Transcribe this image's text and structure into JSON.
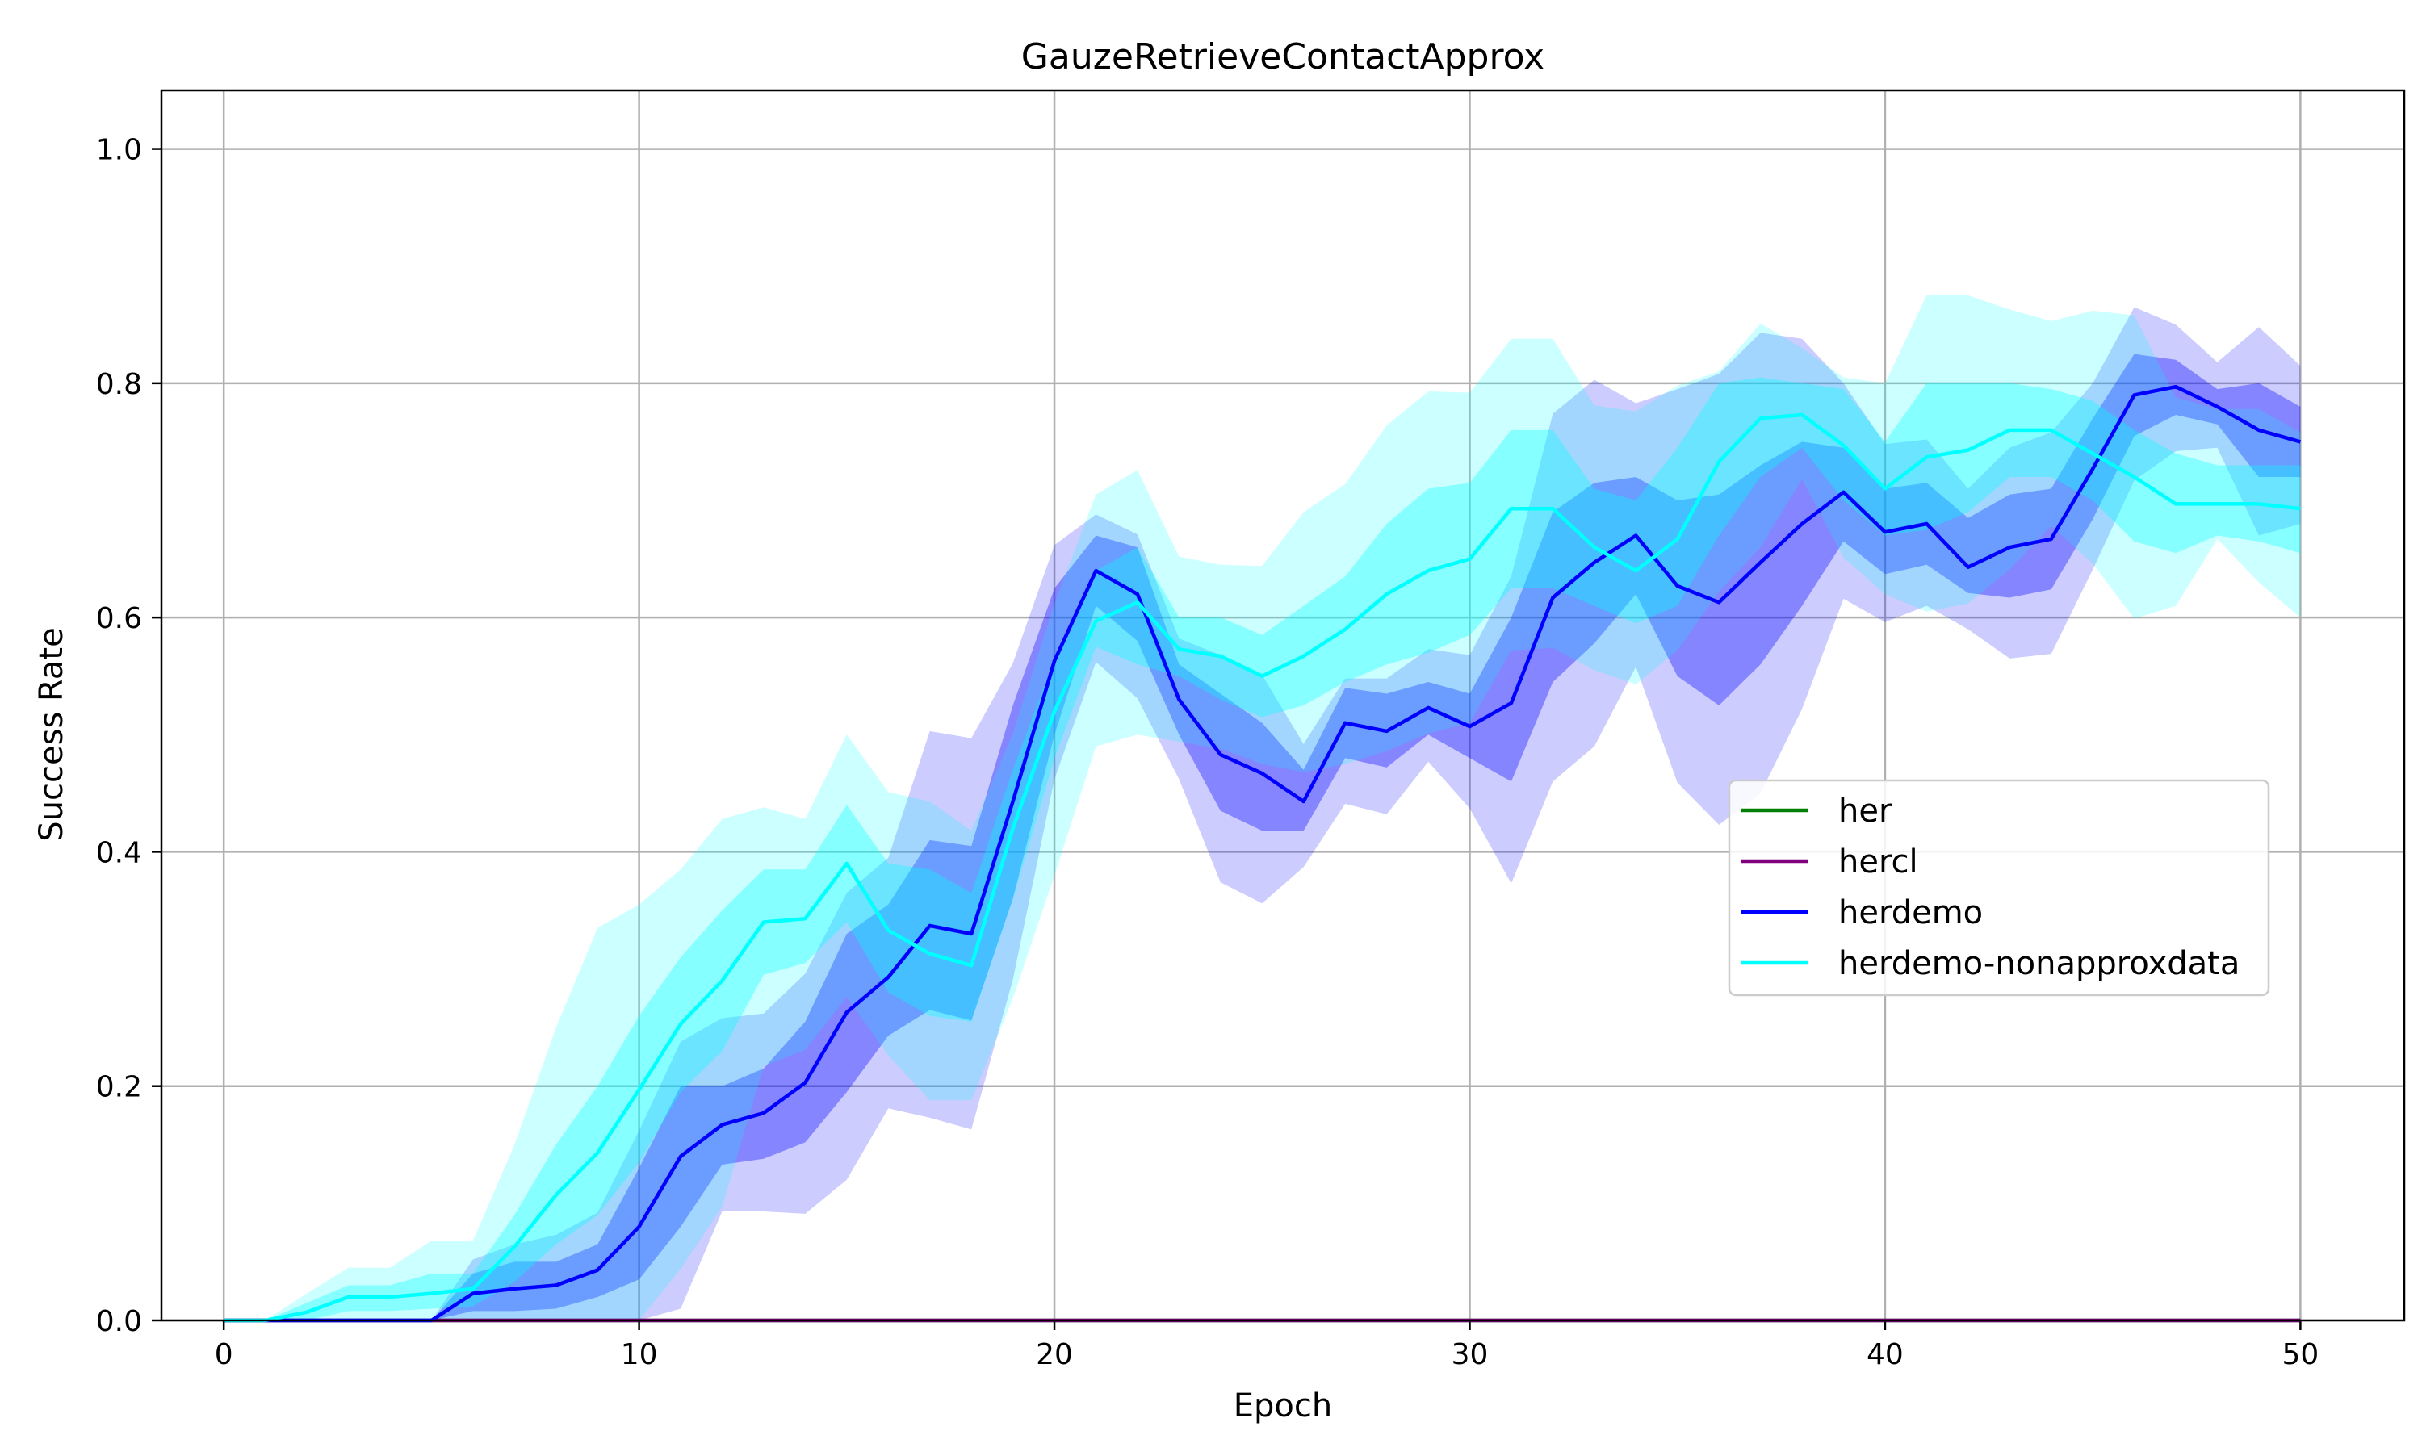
{
  "chart_data": {
    "type": "line",
    "title": "GauzeRetrieveContactApprox",
    "xlabel": "Epoch",
    "ylabel": "Success Rate",
    "xlim": [
      -1.5,
      52.5
    ],
    "ylim": [
      0.0,
      1.05
    ],
    "xticks": [
      "0",
      "10",
      "20",
      "30",
      "40",
      "50"
    ],
    "yticks": [
      "0.0",
      "0.2",
      "0.4",
      "0.6",
      "0.8",
      "1.0"
    ],
    "grid": true,
    "legend_position": "center-right",
    "x": [
      0,
      1,
      2,
      3,
      4,
      5,
      6,
      7,
      8,
      9,
      10,
      11,
      12,
      13,
      14,
      15,
      16,
      17,
      18,
      19,
      20,
      21,
      22,
      23,
      24,
      25,
      26,
      27,
      28,
      29,
      30,
      31,
      32,
      33,
      34,
      35,
      36,
      37,
      38,
      39,
      40,
      41,
      42,
      43,
      44,
      45,
      46,
      47,
      48,
      49,
      50
    ],
    "series": [
      {
        "name": "her",
        "color": "#008000",
        "values": [
          0,
          0,
          0,
          0,
          0,
          0,
          0,
          0,
          0,
          0,
          0,
          0,
          0,
          0,
          0,
          0,
          0,
          0,
          0,
          0,
          0,
          0,
          0,
          0,
          0,
          0,
          0,
          0,
          0,
          0,
          0,
          0,
          0,
          0,
          0,
          0,
          0,
          0,
          0,
          0,
          0,
          0,
          0,
          0,
          0,
          0,
          0,
          0,
          0,
          0,
          0
        ]
      },
      {
        "name": "hercl",
        "color": "#800080",
        "values": [
          0,
          0,
          0,
          0,
          0,
          0,
          0,
          0,
          0,
          0,
          0,
          0,
          0,
          0,
          0,
          0,
          0,
          0,
          0,
          0,
          0,
          0,
          0,
          0,
          0,
          0,
          0,
          0,
          0,
          0,
          0,
          0,
          0,
          0,
          0,
          0,
          0,
          0,
          0,
          0,
          0,
          0,
          0,
          0,
          0,
          0,
          0,
          0,
          0,
          0,
          0
        ]
      },
      {
        "name": "herdemo",
        "color": "#0000ff",
        "values": [
          0,
          0,
          0,
          0,
          0,
          0,
          0.023,
          0.027,
          0.03,
          0.043,
          0.08,
          0.14,
          0.167,
          0.177,
          0.203,
          0.263,
          0.293,
          0.337,
          0.33,
          0.443,
          0.563,
          0.64,
          0.62,
          0.53,
          0.483,
          0.467,
          0.443,
          0.51,
          0.503,
          0.523,
          0.507,
          0.527,
          0.617,
          0.647,
          0.67,
          0.627,
          0.613,
          0.647,
          0.68,
          0.707,
          0.673,
          0.68,
          0.643,
          0.66,
          0.667,
          0.727,
          0.79,
          0.797,
          0.78,
          0.76,
          0.75
        ],
        "band_upper": [
          0,
          0,
          0,
          0,
          0,
          0,
          0.04,
          0.05,
          0.05,
          0.065,
          0.13,
          0.2,
          0.2,
          0.215,
          0.255,
          0.33,
          0.355,
          0.41,
          0.405,
          0.525,
          0.625,
          0.67,
          0.66,
          0.56,
          0.535,
          0.51,
          0.47,
          0.54,
          0.535,
          0.545,
          0.535,
          0.6,
          0.69,
          0.715,
          0.72,
          0.7,
          0.705,
          0.73,
          0.75,
          0.745,
          0.71,
          0.715,
          0.685,
          0.705,
          0.71,
          0.77,
          0.825,
          0.82,
          0.795,
          0.8,
          0.78
        ],
        "band_lower": [
          0,
          0,
          0,
          0,
          0,
          0,
          0.008,
          0.008,
          0.01,
          0.02,
          0.035,
          0.08,
          0.133,
          0.138,
          0.152,
          0.195,
          0.243,
          0.265,
          0.256,
          0.36,
          0.5,
          0.61,
          0.58,
          0.5,
          0.435,
          0.418,
          0.418,
          0.48,
          0.472,
          0.5,
          0.48,
          0.46,
          0.545,
          0.578,
          0.62,
          0.55,
          0.525,
          0.56,
          0.61,
          0.665,
          0.637,
          0.645,
          0.621,
          0.617,
          0.624,
          0.684,
          0.755,
          0.773,
          0.765,
          0.72,
          0.72
        ],
        "band_upper_wide": [
          0,
          0,
          0,
          0,
          0,
          0,
          0.052,
          0.065,
          0.073,
          0.092,
          0.162,
          0.238,
          0.258,
          0.262,
          0.296,
          0.365,
          0.395,
          0.503,
          0.497,
          0.561,
          0.662,
          0.688,
          0.671,
          0.582,
          0.568,
          0.551,
          0.492,
          0.548,
          0.548,
          0.573,
          0.568,
          0.635,
          0.774,
          0.803,
          0.783,
          0.795,
          0.808,
          0.843,
          0.838,
          0.8,
          0.748,
          0.752,
          0.71,
          0.745,
          0.758,
          0.8,
          0.865,
          0.85,
          0.818,
          0.848,
          0.815
        ],
        "band_lower_wide": [
          0,
          0,
          0,
          0,
          0,
          0,
          0,
          0,
          0,
          0,
          0,
          0.01,
          0.093,
          0.093,
          0.091,
          0.12,
          0.181,
          0.173,
          0.163,
          0.291,
          0.462,
          0.562,
          0.531,
          0.462,
          0.374,
          0.356,
          0.387,
          0.441,
          0.432,
          0.477,
          0.437,
          0.373,
          0.46,
          0.49,
          0.558,
          0.459,
          0.423,
          0.45,
          0.522,
          0.616,
          0.596,
          0.61,
          0.59,
          0.565,
          0.569,
          0.641,
          0.717,
          0.742,
          0.745,
          0.67,
          0.68
        ]
      },
      {
        "name": "herdemo-nonapproxdata",
        "color": "#00ffff",
        "values": [
          0,
          0,
          0.007,
          0.02,
          0.02,
          0.023,
          0.027,
          0.063,
          0.107,
          0.143,
          0.197,
          0.253,
          0.29,
          0.34,
          0.343,
          0.39,
          0.333,
          0.313,
          0.303,
          0.42,
          0.52,
          0.597,
          0.613,
          0.573,
          0.567,
          0.55,
          0.567,
          0.59,
          0.62,
          0.64,
          0.65,
          0.693,
          0.693,
          0.66,
          0.64,
          0.667,
          0.733,
          0.77,
          0.773,
          0.747,
          0.71,
          0.737,
          0.743,
          0.76,
          0.76,
          0.74,
          0.72,
          0.697,
          0.697,
          0.697,
          0.693
        ],
        "band_upper": [
          0,
          0,
          0.015,
          0.03,
          0.03,
          0.04,
          0.04,
          0.09,
          0.15,
          0.2,
          0.26,
          0.31,
          0.35,
          0.385,
          0.385,
          0.44,
          0.39,
          0.385,
          0.365,
          0.47,
          0.565,
          0.64,
          0.66,
          0.6,
          0.6,
          0.585,
          0.61,
          0.635,
          0.68,
          0.71,
          0.715,
          0.76,
          0.76,
          0.71,
          0.7,
          0.745,
          0.8,
          0.805,
          0.8,
          0.795,
          0.75,
          0.8,
          0.8,
          0.8,
          0.795,
          0.785,
          0.76,
          0.74,
          0.73,
          0.73,
          0.73
        ],
        "band_lower": [
          0,
          0,
          0,
          0.008,
          0.008,
          0.01,
          0.012,
          0.033,
          0.065,
          0.09,
          0.135,
          0.195,
          0.23,
          0.295,
          0.305,
          0.34,
          0.28,
          0.26,
          0.255,
          0.36,
          0.48,
          0.575,
          0.56,
          0.55,
          0.53,
          0.515,
          0.525,
          0.545,
          0.56,
          0.57,
          0.585,
          0.625,
          0.625,
          0.61,
          0.595,
          0.61,
          0.67,
          0.72,
          0.745,
          0.7,
          0.67,
          0.675,
          0.69,
          0.72,
          0.72,
          0.7,
          0.665,
          0.655,
          0.67,
          0.665,
          0.655
        ],
        "band_upper_wide": [
          0,
          0,
          0.023,
          0.045,
          0.045,
          0.068,
          0.068,
          0.15,
          0.25,
          0.335,
          0.355,
          0.385,
          0.428,
          0.438,
          0.428,
          0.5,
          0.451,
          0.443,
          0.418,
          0.501,
          0.612,
          0.705,
          0.726,
          0.652,
          0.645,
          0.644,
          0.69,
          0.714,
          0.764,
          0.793,
          0.792,
          0.838,
          0.838,
          0.781,
          0.776,
          0.798,
          0.81,
          0.851,
          0.83,
          0.805,
          0.8,
          0.875,
          0.875,
          0.863,
          0.853,
          0.862,
          0.858,
          0.788,
          0.778,
          0.778,
          0.758
        ],
        "band_lower_wide": [
          0,
          0,
          0,
          0,
          0,
          0,
          0,
          0,
          0,
          0,
          0,
          0.044,
          0.097,
          0.217,
          0.231,
          0.276,
          0.226,
          0.188,
          0.188,
          0.275,
          0.38,
          0.49,
          0.5,
          0.494,
          0.488,
          0.475,
          0.468,
          0.475,
          0.486,
          0.501,
          0.51,
          0.572,
          0.574,
          0.555,
          0.543,
          0.572,
          0.622,
          0.66,
          0.718,
          0.651,
          0.62,
          0.605,
          0.612,
          0.641,
          0.678,
          0.646,
          0.599,
          0.61,
          0.667,
          0.63,
          0.6
        ]
      }
    ]
  }
}
